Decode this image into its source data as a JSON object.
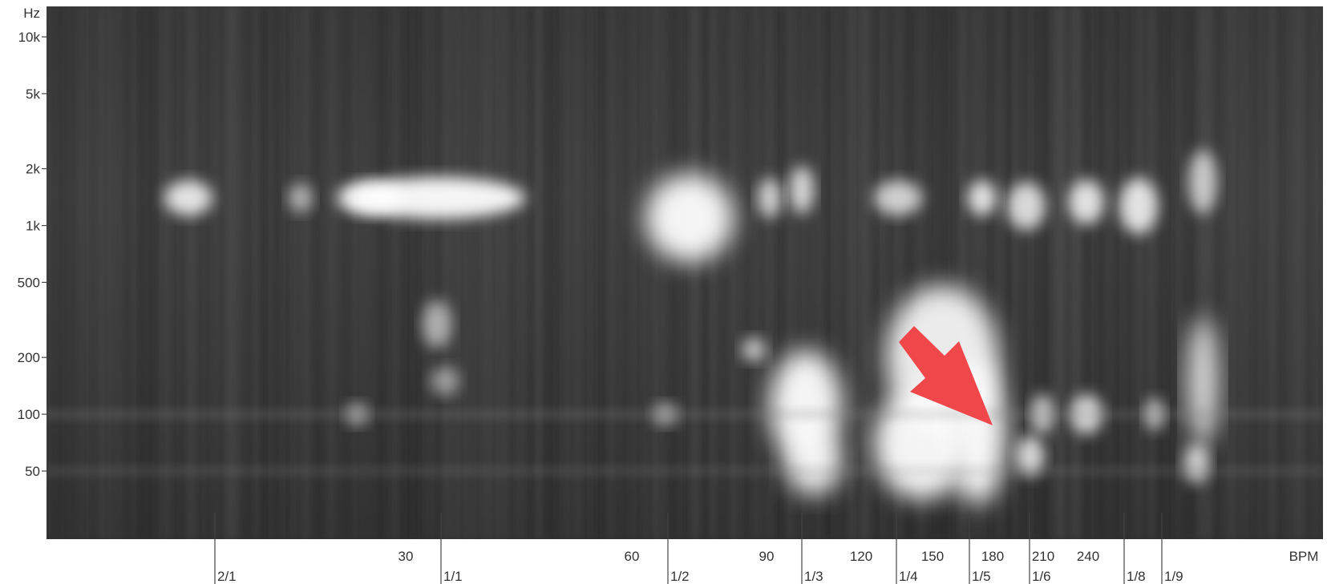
{
  "chart_data": {
    "type": "heatmap",
    "y_unit": "Hz",
    "x_unit": "BPM",
    "y_scale": "log",
    "y_ticks": [
      {
        "value": 10000,
        "label": "10k"
      },
      {
        "value": 5000,
        "label": "5k"
      },
      {
        "value": 2000,
        "label": "2k"
      },
      {
        "value": 1000,
        "label": "1k"
      },
      {
        "value": 500,
        "label": "500"
      },
      {
        "value": 200,
        "label": "200"
      },
      {
        "value": 100,
        "label": "100"
      },
      {
        "value": 50,
        "label": "50"
      }
    ],
    "x_ticks": [
      {
        "value": 30,
        "label": "30"
      },
      {
        "value": 60,
        "label": "60"
      },
      {
        "value": 90,
        "label": "90"
      },
      {
        "value": 120,
        "label": "120"
      },
      {
        "value": 150,
        "label": "150"
      },
      {
        "value": 180,
        "label": "180"
      },
      {
        "value": 210,
        "label": "210"
      },
      {
        "value": 240,
        "label": "240"
      }
    ],
    "ratio_markers": [
      {
        "label": "2/1"
      },
      {
        "label": "1/1"
      },
      {
        "label": "1/2"
      },
      {
        "label": "1/3"
      },
      {
        "label": "1/4"
      },
      {
        "label": "1/5"
      },
      {
        "label": "1/6"
      },
      {
        "label": "1/8"
      },
      {
        "label": "1/9"
      }
    ],
    "colormap": [
      "#2e2e2e",
      "#ffffff"
    ],
    "highlight": {
      "description": "red arrow",
      "color": "#f0474b",
      "points_to": {
        "bpm": 170,
        "hz": 100
      }
    }
  }
}
